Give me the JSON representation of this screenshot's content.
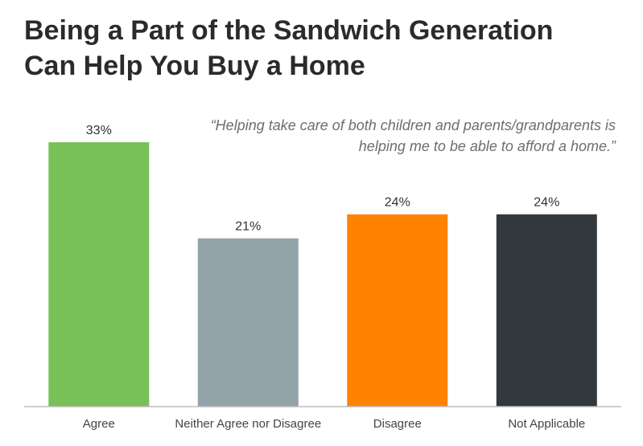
{
  "chart_data": {
    "type": "bar",
    "title_lines": [
      "Being a Part of the Sandwich Generation",
      "Can Help You Buy a Home"
    ],
    "annotation_lines": [
      "“Helping take care of both children and parents/grandparents is",
      "helping me to be able to afford a home.”"
    ],
    "categories": [
      "Agree",
      "Neither Agree nor Disagree",
      "Disagree",
      "Not Applicable"
    ],
    "values": [
      33,
      21,
      24,
      24
    ],
    "value_labels": [
      "33%",
      "21%",
      "24%",
      "24%"
    ],
    "colors": [
      "#77c158",
      "#93a3aa",
      "#ff8200",
      "#32383d"
    ],
    "ylim": [
      0,
      33
    ],
    "grid": false,
    "legend": "none",
    "xlabel": "",
    "ylabel": ""
  }
}
